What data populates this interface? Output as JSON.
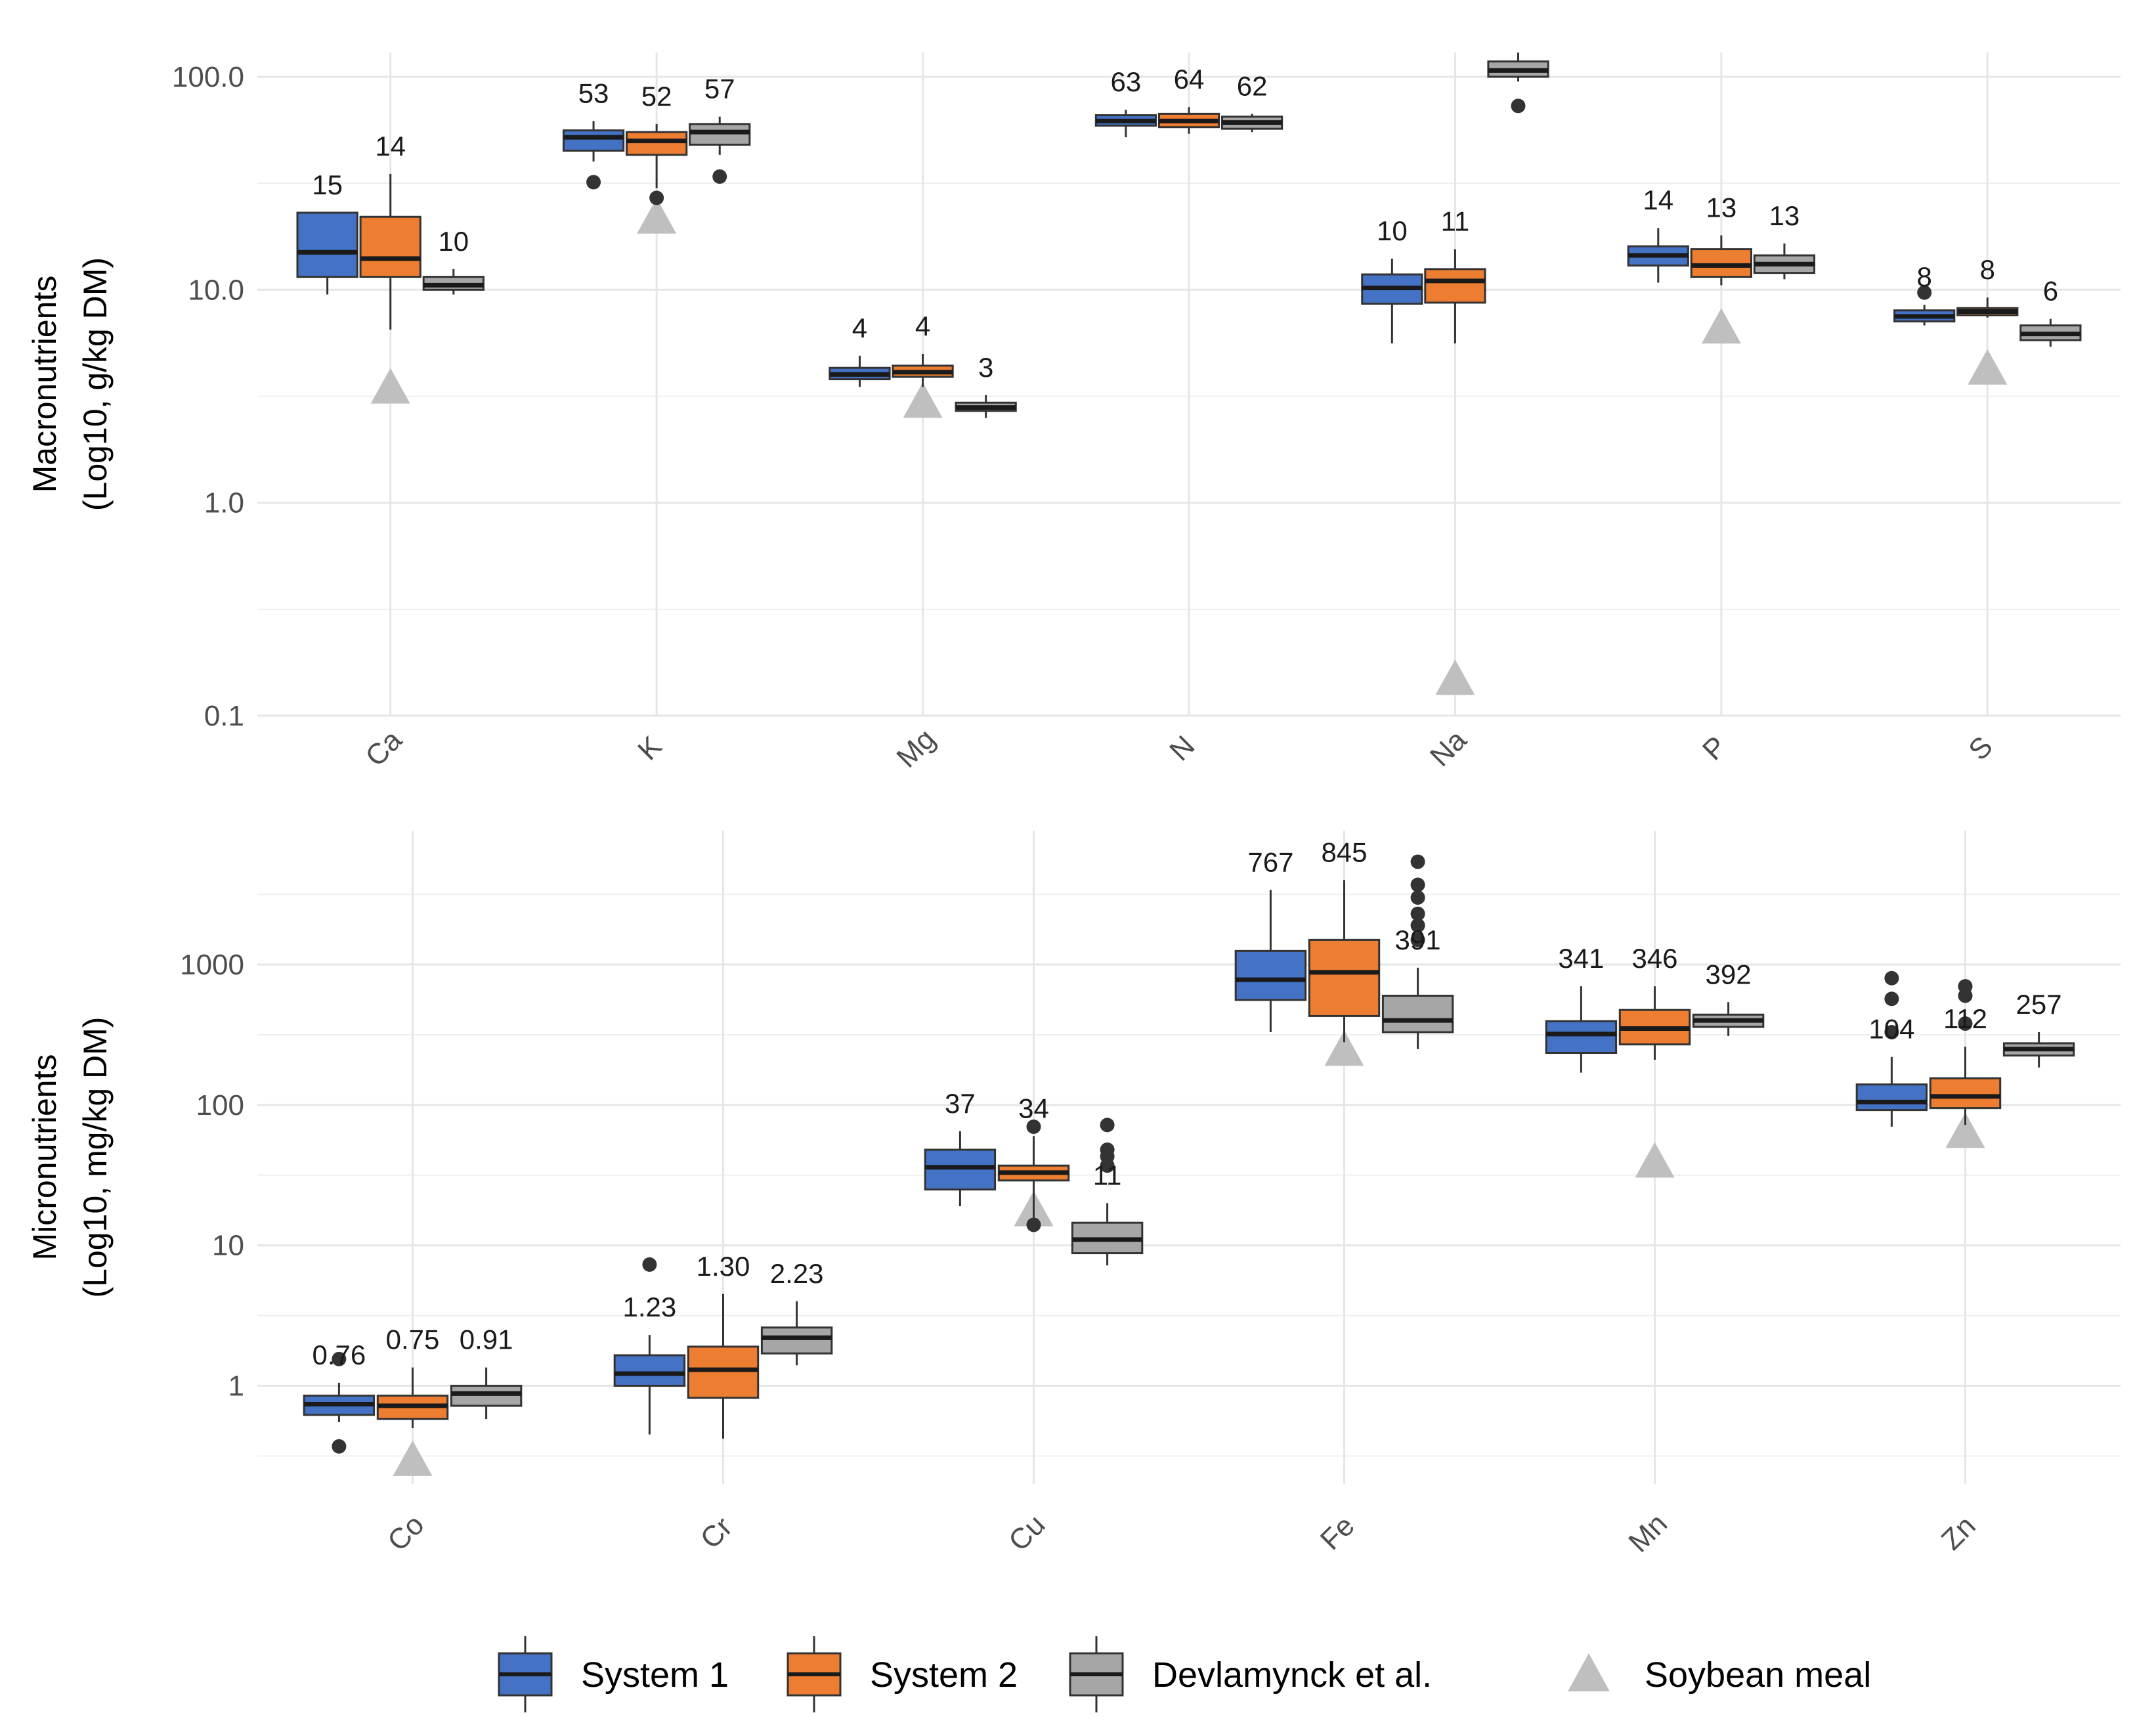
{
  "colors": {
    "system1": "#4472C4",
    "system2": "#ED7D31",
    "devlamynck": "#A6A6A6",
    "soybean": "#BFBFBF",
    "box_line": "#333333"
  },
  "legend": {
    "items": [
      {
        "label": "System 1",
        "key": "system1",
        "shape": "box"
      },
      {
        "label": "System 2",
        "key": "system2",
        "shape": "box"
      },
      {
        "label": "Devlamynck et al.",
        "key": "devlamynck",
        "shape": "box"
      },
      {
        "label": "Soybean meal",
        "key": "soybean",
        "shape": "triangle"
      }
    ]
  },
  "chart_data": [
    {
      "type": "boxplot",
      "scale": "log10",
      "ylabel_line1": "Macronutrients",
      "ylabel_line2": "(Log10, g/kg DM)",
      "ylim": [
        0.1,
        130
      ],
      "yticks": [
        0.1,
        1,
        10,
        100
      ],
      "ytick_labels": [
        "0.1",
        "1.0",
        "10.0",
        "100.0"
      ],
      "categories": [
        "Ca",
        "K",
        "Mg",
        "N",
        "Na",
        "P",
        "S"
      ],
      "series": [
        {
          "name": "System 1",
          "key": "system1",
          "boxes": [
            {
              "q1": 11.5,
              "median": 15,
              "q3": 23,
              "wlo": 9.5,
              "whi": 23,
              "outliers": [],
              "label": "15"
            },
            {
              "q1": 45,
              "median": 52,
              "q3": 56,
              "wlo": 40,
              "whi": 62,
              "outliers": [
                32
              ],
              "label": "53"
            },
            {
              "q1": 3.8,
              "median": 4.0,
              "q3": 4.3,
              "wlo": 3.5,
              "whi": 4.9,
              "outliers": [],
              "label": "4"
            },
            {
              "q1": 59,
              "median": 62,
              "q3": 66,
              "wlo": 52,
              "whi": 70,
              "outliers": [],
              "label": "63"
            },
            {
              "q1": 8.6,
              "median": 10.2,
              "q3": 11.8,
              "wlo": 5.6,
              "whi": 14,
              "outliers": [],
              "label": "10"
            },
            {
              "q1": 13,
              "median": 14.5,
              "q3": 16,
              "wlo": 10.8,
              "whi": 19.5,
              "outliers": [],
              "label": "14"
            },
            {
              "q1": 7.1,
              "median": 7.5,
              "q3": 8.0,
              "wlo": 6.8,
              "whi": 8.5,
              "outliers": [
                9.7
              ],
              "label": "8"
            }
          ]
        },
        {
          "name": "System 2",
          "key": "system2",
          "boxes": [
            {
              "q1": 11.5,
              "median": 14,
              "q3": 22,
              "wlo": 6.5,
              "whi": 35,
              "outliers": [],
              "label": "14"
            },
            {
              "q1": 43,
              "median": 50,
              "q3": 55,
              "wlo": 30,
              "whi": 60,
              "outliers": [
                27
              ],
              "label": "52"
            },
            {
              "q1": 3.9,
              "median": 4.1,
              "q3": 4.4,
              "wlo": 3.5,
              "whi": 5.0,
              "outliers": [],
              "label": "4"
            },
            {
              "q1": 58,
              "median": 62,
              "q3": 67,
              "wlo": 54,
              "whi": 72,
              "outliers": [],
              "label": "64"
            },
            {
              "q1": 8.7,
              "median": 11,
              "q3": 12.5,
              "wlo": 5.6,
              "whi": 15.5,
              "outliers": [],
              "label": "11"
            },
            {
              "q1": 11.5,
              "median": 13,
              "q3": 15.5,
              "wlo": 10.5,
              "whi": 18,
              "outliers": [],
              "label": "13"
            },
            {
              "q1": 7.6,
              "median": 7.9,
              "q3": 8.2,
              "wlo": 7.4,
              "whi": 9.2,
              "outliers": [],
              "label": "8"
            }
          ]
        },
        {
          "name": "Devlamynck et al.",
          "key": "devlamynck",
          "boxes": [
            {
              "q1": 10,
              "median": 10.5,
              "q3": 11.5,
              "wlo": 9.5,
              "whi": 12.5,
              "outliers": [],
              "label": "10"
            },
            {
              "q1": 48,
              "median": 55,
              "q3": 60,
              "wlo": 43,
              "whi": 65,
              "outliers": [
                34
              ],
              "label": "57"
            },
            {
              "q1": 2.7,
              "median": 2.8,
              "q3": 2.95,
              "wlo": 2.5,
              "whi": 3.2,
              "outliers": [],
              "label": "3"
            },
            {
              "q1": 57,
              "median": 61,
              "q3": 65,
              "wlo": 55,
              "whi": 67,
              "outliers": [],
              "label": "62"
            },
            {
              "q1": 100,
              "median": 107,
              "q3": 118,
              "wlo": 95,
              "whi": 130,
              "outliers": [
                73
              ],
              "label": ""
            },
            {
              "q1": 12,
              "median": 13.2,
              "q3": 14.5,
              "wlo": 11.2,
              "whi": 16.5,
              "outliers": [],
              "label": "13"
            },
            {
              "q1": 5.8,
              "median": 6.2,
              "q3": 6.8,
              "wlo": 5.4,
              "whi": 7.3,
              "outliers": [],
              "label": "6"
            }
          ]
        }
      ],
      "soybean_meal": [
        3.5,
        22,
        3.0,
        null,
        0.15,
        6.7,
        4.3
      ]
    },
    {
      "type": "boxplot",
      "scale": "log10",
      "ylabel_line1": "Micronutrients",
      "ylabel_line2": "(Log10, mg/kg DM)",
      "ylim": [
        0.2,
        9000
      ],
      "yticks": [
        1,
        10,
        100,
        1000
      ],
      "ytick_labels": [
        "1",
        "10",
        "100",
        "1000"
      ],
      "categories": [
        "Co",
        "Cr",
        "Cu",
        "Fe",
        "Mn",
        "Zn"
      ],
      "series": [
        {
          "name": "System 1",
          "key": "system1",
          "boxes": [
            {
              "q1": 0.62,
              "median": 0.74,
              "q3": 0.85,
              "wlo": 0.55,
              "whi": 1.05,
              "outliers": [
                1.55,
                0.37
              ],
              "label": "0.76"
            },
            {
              "q1": 1.0,
              "median": 1.22,
              "q3": 1.65,
              "wlo": 0.45,
              "whi": 2.3,
              "outliers": [
                7.3
              ],
              "label": "1.23"
            },
            {
              "q1": 25,
              "median": 36,
              "q3": 48,
              "wlo": 19,
              "whi": 65,
              "outliers": [],
              "label": "37"
            },
            {
              "q1": 560,
              "median": 780,
              "q3": 1250,
              "wlo": 330,
              "whi": 3400,
              "outliers": [],
              "label": "767"
            },
            {
              "q1": 235,
              "median": 320,
              "q3": 395,
              "wlo": 170,
              "whi": 700,
              "outliers": [],
              "label": "341"
            },
            {
              "q1": 92,
              "median": 105,
              "q3": 140,
              "wlo": 70,
              "whi": 220,
              "outliers": [
                330,
                570,
                800
              ],
              "label": "104"
            }
          ]
        },
        {
          "name": "System 2",
          "key": "system2",
          "boxes": [
            {
              "q1": 0.58,
              "median": 0.72,
              "q3": 0.85,
              "wlo": 0.5,
              "whi": 1.35,
              "outliers": [],
              "label": "0.75"
            },
            {
              "q1": 0.82,
              "median": 1.3,
              "q3": 1.9,
              "wlo": 0.42,
              "whi": 4.5,
              "outliers": [],
              "label": "1.30"
            },
            {
              "q1": 29,
              "median": 33,
              "q3": 37,
              "wlo": 14,
              "whi": 60,
              "outliers": [
                70,
                14
              ],
              "label": "34"
            },
            {
              "q1": 430,
              "median": 880,
              "q3": 1500,
              "wlo": 280,
              "whi": 4000,
              "outliers": [],
              "label": "845"
            },
            {
              "q1": 270,
              "median": 350,
              "q3": 475,
              "wlo": 210,
              "whi": 700,
              "outliers": [],
              "label": "346"
            },
            {
              "q1": 95,
              "median": 115,
              "q3": 155,
              "wlo": 72,
              "whi": 260,
              "outliers": [
                380,
                600,
                700
              ],
              "label": "112"
            }
          ]
        },
        {
          "name": "Devlamynck et al.",
          "key": "devlamynck",
          "boxes": [
            {
              "q1": 0.72,
              "median": 0.88,
              "q3": 1.0,
              "wlo": 0.58,
              "whi": 1.35,
              "outliers": [],
              "label": "0.91"
            },
            {
              "q1": 1.7,
              "median": 2.2,
              "q3": 2.6,
              "wlo": 1.4,
              "whi": 4.0,
              "outliers": [],
              "label": "2.23"
            },
            {
              "q1": 8.8,
              "median": 11,
              "q3": 14.5,
              "wlo": 7.2,
              "whi": 20,
              "outliers": [
                37,
                43,
                48,
                72
              ],
              "label": "11"
            },
            {
              "q1": 330,
              "median": 400,
              "q3": 600,
              "wlo": 250,
              "whi": 950,
              "outliers": [
                1500,
                1900,
                2300,
                3000,
                3700,
                5400
              ],
              "label": "391"
            },
            {
              "q1": 360,
              "median": 400,
              "q3": 440,
              "wlo": 310,
              "whi": 540,
              "outliers": [],
              "label": "392"
            },
            {
              "q1": 225,
              "median": 250,
              "q3": 275,
              "wlo": 185,
              "whi": 330,
              "outliers": [],
              "label": "257"
            }
          ]
        }
      ],
      "soybean_meal": [
        0.3,
        null,
        18,
        250,
        40,
        65
      ]
    }
  ]
}
